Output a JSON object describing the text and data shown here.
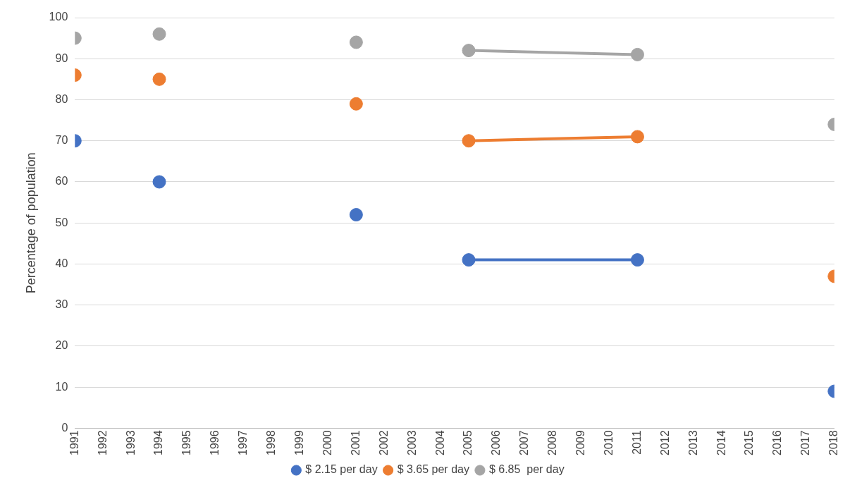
{
  "chart_data": {
    "type": "scatter",
    "ylabel": "Percentage of population",
    "xlim": [
      1991,
      2018
    ],
    "xticks": [
      1991,
      1992,
      1993,
      1994,
      1995,
      1996,
      1997,
      1998,
      1999,
      2000,
      2001,
      2002,
      2003,
      2004,
      2005,
      2006,
      2007,
      2008,
      2009,
      2010,
      2011,
      2012,
      2013,
      2014,
      2015,
      2016,
      2017,
      2018
    ],
    "ylim": [
      0,
      100
    ],
    "yticks": [
      0,
      10,
      20,
      30,
      40,
      50,
      60,
      70,
      80,
      90,
      100
    ],
    "grid": "y",
    "legend": "bottom",
    "marker": "circle",
    "series": [
      {
        "name": "$ 2.15 per day",
        "color": "#4472c4",
        "x": [
          1991,
          1994,
          2001,
          2005,
          2011,
          2018
        ],
        "values": [
          70,
          60,
          52,
          41,
          41,
          9
        ]
      },
      {
        "name": "$ 3.65 per day",
        "color": "#ed7d31",
        "x": [
          1991,
          1994,
          2001,
          2005,
          2011,
          2018
        ],
        "values": [
          86,
          85,
          79,
          70,
          71,
          37
        ]
      },
      {
        "name": "$ 6.85  per day",
        "color": "#a5a5a5",
        "x": [
          1991,
          1994,
          2001,
          2005,
          2011,
          2018
        ],
        "values": [
          95,
          96,
          94,
          92,
          91,
          74
        ]
      },
      {
        "type": "line",
        "marker": "none",
        "color": "#4472c4",
        "x": [
          2005,
          2011
        ],
        "values": [
          41,
          41
        ]
      },
      {
        "type": "line",
        "marker": "none",
        "color": "#ed7d31",
        "x": [
          2005,
          2011
        ],
        "values": [
          70,
          71
        ]
      },
      {
        "type": "line",
        "marker": "none",
        "color": "#a5a5a5",
        "x": [
          2005,
          2011
        ],
        "values": [
          92,
          91
        ]
      }
    ]
  }
}
